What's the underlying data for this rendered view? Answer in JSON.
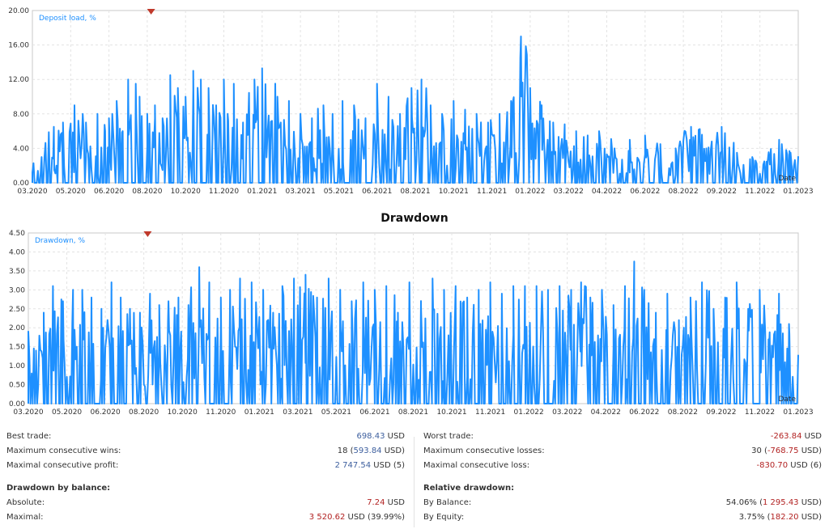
{
  "chart_data": [
    {
      "type": "area",
      "title": "Deposit load, %",
      "y_ticks": [
        "0.00",
        "4.00",
        "8.00",
        "12.00",
        "16.00",
        "20.00"
      ],
      "ylim": [
        0,
        20
      ],
      "x_ticks": [
        "03.2020",
        "05.2020",
        "06.2020",
        "08.2020",
        "10.2020",
        "11.2020",
        "01.2021",
        "03.2021",
        "05.2021",
        "06.2021",
        "08.2021",
        "10.2021",
        "11.2021",
        "01.2022",
        "03.2022",
        "04.2022",
        "06.2022",
        "08.2022",
        "09.2022",
        "11.2022",
        "01.2023"
      ],
      "x_axis_label": "Date",
      "grid": true,
      "color": "#1e90ff",
      "peaks": [
        [
          0.0,
          1.2
        ],
        [
          0.012,
          3.0
        ],
        [
          0.028,
          6.5
        ],
        [
          0.04,
          7.0
        ],
        [
          0.055,
          9.0
        ],
        [
          0.07,
          7.0
        ],
        [
          0.085,
          8.0
        ],
        [
          0.095,
          6.0
        ],
        [
          0.1,
          7.5
        ],
        [
          0.11,
          9.5
        ],
        [
          0.118,
          6.0
        ],
        [
          0.125,
          12.0
        ],
        [
          0.135,
          11.5
        ],
        [
          0.14,
          10.0
        ],
        [
          0.15,
          8.0
        ],
        [
          0.16,
          9.0
        ],
        [
          0.17,
          7.5
        ],
        [
          0.18,
          12.5
        ],
        [
          0.19,
          11.0
        ],
        [
          0.2,
          10.0
        ],
        [
          0.21,
          13.0
        ],
        [
          0.22,
          12.0
        ],
        [
          0.23,
          11.0
        ],
        [
          0.24,
          9.0
        ],
        [
          0.25,
          12.0
        ],
        [
          0.255,
          8.0
        ],
        [
          0.263,
          11.5
        ],
        [
          0.275,
          7.0
        ],
        [
          0.29,
          12.0
        ],
        [
          0.3,
          13.3
        ],
        [
          0.32,
          10.0
        ],
        [
          0.335,
          9.5
        ],
        [
          0.35,
          8.0
        ],
        [
          0.365,
          7.5
        ],
        [
          0.38,
          9.0
        ],
        [
          0.392,
          8.0
        ],
        [
          0.405,
          9.5
        ],
        [
          0.42,
          9.0
        ],
        [
          0.435,
          7.5
        ],
        [
          0.45,
          11.5
        ],
        [
          0.465,
          10.0
        ],
        [
          0.48,
          8.0
        ],
        [
          0.495,
          11.0
        ],
        [
          0.508,
          12.0
        ],
        [
          0.52,
          9.0
        ],
        [
          0.535,
          8.0
        ],
        [
          0.55,
          9.5
        ],
        [
          0.565,
          8.5
        ],
        [
          0.58,
          8.0
        ],
        [
          0.595,
          7.0
        ],
        [
          0.61,
          8.0
        ],
        [
          0.625,
          9.5
        ],
        [
          0.638,
          17.0
        ],
        [
          0.65,
          11.0
        ],
        [
          0.665,
          9.0
        ],
        [
          0.68,
          7.0
        ],
        [
          0.695,
          6.8
        ],
        [
          0.71,
          6.0
        ],
        [
          0.725,
          5.5
        ],
        [
          0.74,
          6.0
        ],
        [
          0.76,
          4.0
        ],
        [
          0.78,
          5.0
        ],
        [
          0.8,
          5.5
        ],
        [
          0.82,
          4.5
        ],
        [
          0.84,
          4.0
        ],
        [
          0.86,
          6.5
        ],
        [
          0.88,
          4.0
        ],
        [
          0.9,
          6.5
        ],
        [
          0.92,
          3.5
        ],
        [
          0.94,
          3.0
        ],
        [
          0.96,
          2.5
        ],
        [
          0.975,
          5.0
        ],
        [
          0.99,
          3.5
        ]
      ]
    },
    {
      "type": "area",
      "title": "Drawdown, %",
      "section_title": "Drawdown",
      "y_ticks": [
        "0.00",
        "0.50",
        "1.00",
        "1.50",
        "2.00",
        "2.50",
        "3.00",
        "3.50",
        "4.00",
        "4.50"
      ],
      "ylim": [
        0,
        4.5
      ],
      "x_ticks": [
        "03.2020",
        "05.2020",
        "06.2020",
        "08.2020",
        "10.2020",
        "11.2020",
        "01.2021",
        "03.2021",
        "05.2021",
        "06.2021",
        "08.2021",
        "10.2021",
        "11.2021",
        "01.2022",
        "03.2022",
        "04.2022",
        "06.2022",
        "08.2022",
        "09.2022",
        "11.2022",
        "01.2023"
      ],
      "x_axis_label": "Date",
      "grid": true,
      "color": "#1e90ff",
      "peaks": [
        [
          0.0,
          1.9
        ],
        [
          0.01,
          1.4
        ],
        [
          0.02,
          2.4
        ],
        [
          0.032,
          3.1
        ],
        [
          0.045,
          2.7
        ],
        [
          0.058,
          3.0
        ],
        [
          0.07,
          3.0
        ],
        [
          0.082,
          2.8
        ],
        [
          0.095,
          2.5
        ],
        [
          0.108,
          3.2
        ],
        [
          0.12,
          2.8
        ],
        [
          0.132,
          2.5
        ],
        [
          0.145,
          2.4
        ],
        [
          0.158,
          2.9
        ],
        [
          0.17,
          2.6
        ],
        [
          0.182,
          2.7
        ],
        [
          0.195,
          2.8
        ],
        [
          0.208,
          2.6
        ],
        [
          0.222,
          3.6
        ],
        [
          0.235,
          3.2
        ],
        [
          0.25,
          2.8
        ],
        [
          0.262,
          3.0
        ],
        [
          0.275,
          3.3
        ],
        [
          0.29,
          3.2
        ],
        [
          0.305,
          3.0
        ],
        [
          0.318,
          2.4
        ],
        [
          0.33,
          3.1
        ],
        [
          0.345,
          3.3
        ],
        [
          0.36,
          3.4
        ],
        [
          0.375,
          2.8
        ],
        [
          0.39,
          3.3
        ],
        [
          0.405,
          3.0
        ],
        [
          0.42,
          2.7
        ],
        [
          0.435,
          3.2
        ],
        [
          0.45,
          3.0
        ],
        [
          0.465,
          3.1
        ],
        [
          0.48,
          2.4
        ],
        [
          0.495,
          3.2
        ],
        [
          0.51,
          2.6
        ],
        [
          0.525,
          3.3
        ],
        [
          0.54,
          3.0
        ],
        [
          0.555,
          3.1
        ],
        [
          0.57,
          2.8
        ],
        [
          0.585,
          3.0
        ],
        [
          0.6,
          3.2
        ],
        [
          0.615,
          2.9
        ],
        [
          0.63,
          3.1
        ],
        [
          0.645,
          3.1
        ],
        [
          0.66,
          3.1
        ],
        [
          0.675,
          3.0
        ],
        [
          0.69,
          3.1
        ],
        [
          0.705,
          3.0
        ],
        [
          0.718,
          3.2
        ],
        [
          0.73,
          2.8
        ],
        [
          0.745,
          3.0
        ],
        [
          0.76,
          2.6
        ],
        [
          0.775,
          3.1
        ],
        [
          0.787,
          3.75
        ],
        [
          0.8,
          3.0
        ],
        [
          0.815,
          2.4
        ],
        [
          0.83,
          2.9
        ],
        [
          0.845,
          2.2
        ],
        [
          0.86,
          2.8
        ],
        [
          0.875,
          3.2
        ],
        [
          0.89,
          2.5
        ],
        [
          0.905,
          2.8
        ],
        [
          0.92,
          3.2
        ],
        [
          0.935,
          2.5
        ],
        [
          0.95,
          3.0
        ],
        [
          0.962,
          1.5
        ],
        [
          0.975,
          2.9
        ],
        [
          0.988,
          2.1
        ]
      ]
    }
  ],
  "stats": {
    "left": [
      {
        "label": "Best trade:",
        "value": "698.43",
        "unit": " USD",
        "tone": "pos"
      },
      {
        "label": "Maximum consecutive wins:",
        "value_prefix": "18 (",
        "value": "593.84",
        "unit": " USD)",
        "tone": "pos"
      },
      {
        "label": "Maximal consecutive profit:",
        "value": "2 747.54",
        "unit": " USD (5)",
        "tone": "pos"
      },
      {
        "heading": "Drawdown by balance:"
      },
      {
        "label": "Absolute:",
        "value": "7.24",
        "unit": " USD",
        "tone": "neg"
      },
      {
        "label": "Maximal:",
        "value": "3 520.62",
        "unit": " USD (39.99%)",
        "tone": "neg"
      }
    ],
    "right": [
      {
        "label": "Worst trade:",
        "value": "-263.84",
        "unit": " USD",
        "tone": "neg"
      },
      {
        "label": "Maximum consecutive losses:",
        "value_prefix": "30 (",
        "value": "-768.75",
        "unit": " USD)",
        "tone": "neg"
      },
      {
        "label": "Maximal consecutive loss:",
        "value": "-830.70",
        "unit": " USD (6)",
        "tone": "neg"
      },
      {
        "heading": "Relative drawdown:"
      },
      {
        "label": "By Balance:",
        "value_prefix": "54.06% (",
        "value": "1 295.43",
        "unit": " USD)",
        "tone": "neg"
      },
      {
        "label": "By Equity:",
        "value_prefix": "3.75% (",
        "value": "182.20",
        "unit": " USD)",
        "tone": "neg"
      }
    ]
  }
}
